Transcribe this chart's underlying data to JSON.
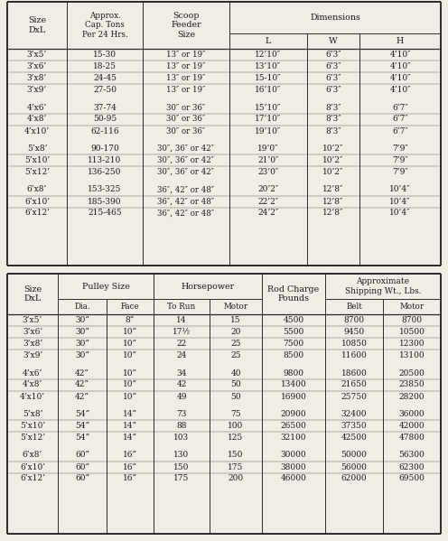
{
  "table1": {
    "rows": [
      [
        "3’x5’",
        "15-30",
        "13″ or 19″",
        "12’10″",
        "6’3″",
        "4’10″"
      ],
      [
        "3’x6’",
        "18-25",
        "13″ or 19″",
        "13’10″",
        "6’3″",
        "4’10″"
      ],
      [
        "3’x8’",
        "24-45",
        "13″ or 19″",
        "15-10″",
        "6’3″",
        "4’10″"
      ],
      [
        "3’x9’",
        "27-50",
        "13″ or 19″",
        "16’10″",
        "6’3″",
        "4’10″"
      ],
      [
        "4’x6’",
        "37-74",
        "30″ or 36″",
        "15’10″",
        "8’3″",
        "6’7″"
      ],
      [
        "4’x8’",
        "50-95",
        "30″ or 36″",
        "17’10″",
        "8’3″",
        "6’7″"
      ],
      [
        "4’x10’",
        "62-116",
        "30″ or 36″",
        "19’10″",
        "8’3″",
        "6’7″"
      ],
      [
        "5’x8’",
        "90-170",
        "30″, 36″ or 42″",
        "19’0″",
        "10’2″",
        "7’9″"
      ],
      [
        "5’x10’",
        "113-210",
        "30″, 36″ or 42″",
        "21’0″",
        "10’2″",
        "7’9″"
      ],
      [
        "5’x12’",
        "136-250",
        "30″, 36″ or 42″",
        "23’0″",
        "10’2″",
        "7’9″"
      ],
      [
        "6’x8’",
        "153-325",
        "36″, 42″ or 48″",
        "20’2″",
        "12’8″",
        "10’4″"
      ],
      [
        "6’x10’",
        "185-390",
        "36″, 42″ or 48″",
        "22’2″",
        "12’8″",
        "10’4″"
      ],
      [
        "6’x12’",
        "215-465",
        "36″, 42″ or 48″",
        "24’2″",
        "12’8″",
        "10’4″"
      ]
    ],
    "group_breaks": [
      4,
      7,
      10
    ]
  },
  "table2": {
    "rows": [
      [
        "3’x5’",
        "30”8”",
        "14",
        "15",
        "4500",
        "8700",
        "8700"
      ],
      [
        "3’x6’",
        "30”10”",
        "17½",
        "20",
        "5500",
        "9450",
        "10500"
      ],
      [
        "3’x8’",
        "30”10”",
        "22",
        "25",
        "7500",
        "10850",
        "12300"
      ],
      [
        "3’x9’",
        "30”10”",
        "24",
        "25",
        "8500",
        "11600",
        "13100"
      ],
      [
        "4’x6’",
        "42”10”",
        "34",
        "40",
        "9800",
        "18600",
        "20500"
      ],
      [
        "4’x8’",
        "42”10”",
        "42",
        "50",
        "13400",
        "21650",
        "23850"
      ],
      [
        "4’x10’",
        "42”10”",
        "49",
        "50",
        "16900",
        "25750",
        "28200"
      ],
      [
        "5’x8’",
        "54”14”",
        "73",
        "75",
        "20900",
        "32400",
        "36000"
      ],
      [
        "5’x10’",
        "54”14”",
        "88",
        "100",
        "26500",
        "37350",
        "42000"
      ],
      [
        "5’x12’",
        "54”14”",
        "103",
        "125",
        "32100",
        "42500",
        "47800"
      ],
      [
        "6’x8’",
        "60”16”",
        "130",
        "150",
        "30000",
        "50000",
        "56300"
      ],
      [
        "6’x10’",
        "60”16”",
        "150",
        "175",
        "38000",
        "56000",
        "62300"
      ],
      [
        "6’x12’",
        "60”16”",
        "175",
        "200",
        "46000",
        "62000",
        "69500"
      ]
    ],
    "group_breaks": [
      4,
      7,
      10
    ]
  },
  "bg_color": "#f0ede6",
  "line_color": "#2a2a2a",
  "text_color": "#1a1a1a",
  "font_size": 6.5,
  "header_font_size": 6.8
}
